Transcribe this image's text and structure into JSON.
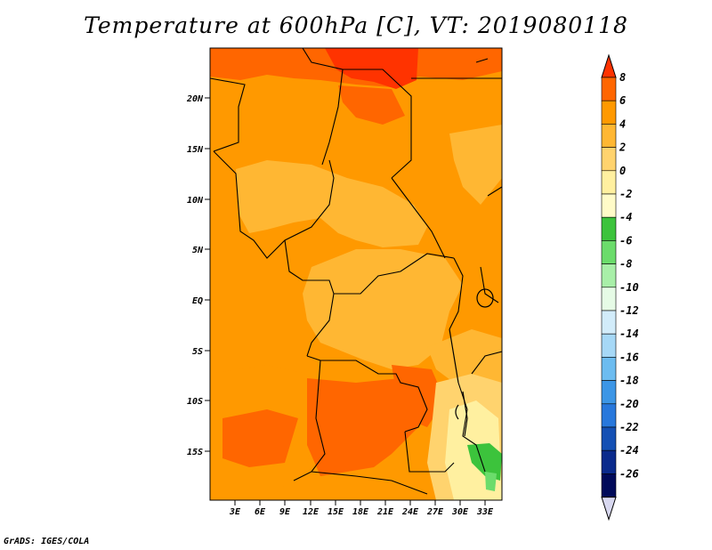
{
  "title": "Temperature at 600hPa [C], VT: 2019080118",
  "credit": "GrADS: IGES/COLA",
  "map": {
    "lat_labels": [
      "20N",
      "15N",
      "10N",
      "5N",
      "EQ",
      "5S",
      "10S",
      "15S"
    ],
    "lon_labels": [
      "3E",
      "6E",
      "9E",
      "12E",
      "15E",
      "18E",
      "21E",
      "24E",
      "27E",
      "30E",
      "33E"
    ]
  },
  "colorbar": {
    "labels": [
      "8",
      "6",
      "4",
      "2",
      "0",
      "-2",
      "-4",
      "-6",
      "-8",
      "-10",
      "-12",
      "-14",
      "-16",
      "-18",
      "-20",
      "-22",
      "-24",
      "-26"
    ],
    "colors": [
      "#ff3300",
      "#ff6600",
      "#ff9900",
      "#ffb733",
      "#ffd36e",
      "#fff0a0",
      "#fffbc8",
      "#3cc33c",
      "#6bdc6b",
      "#a8efa8",
      "#e6fbe6",
      "#d2ecfa",
      "#a6d8f6",
      "#6cbcf0",
      "#3c96e6",
      "#2878dc",
      "#1450b4",
      "#0a2a8c",
      "#000a5a",
      "#d8d8f0"
    ]
  }
}
